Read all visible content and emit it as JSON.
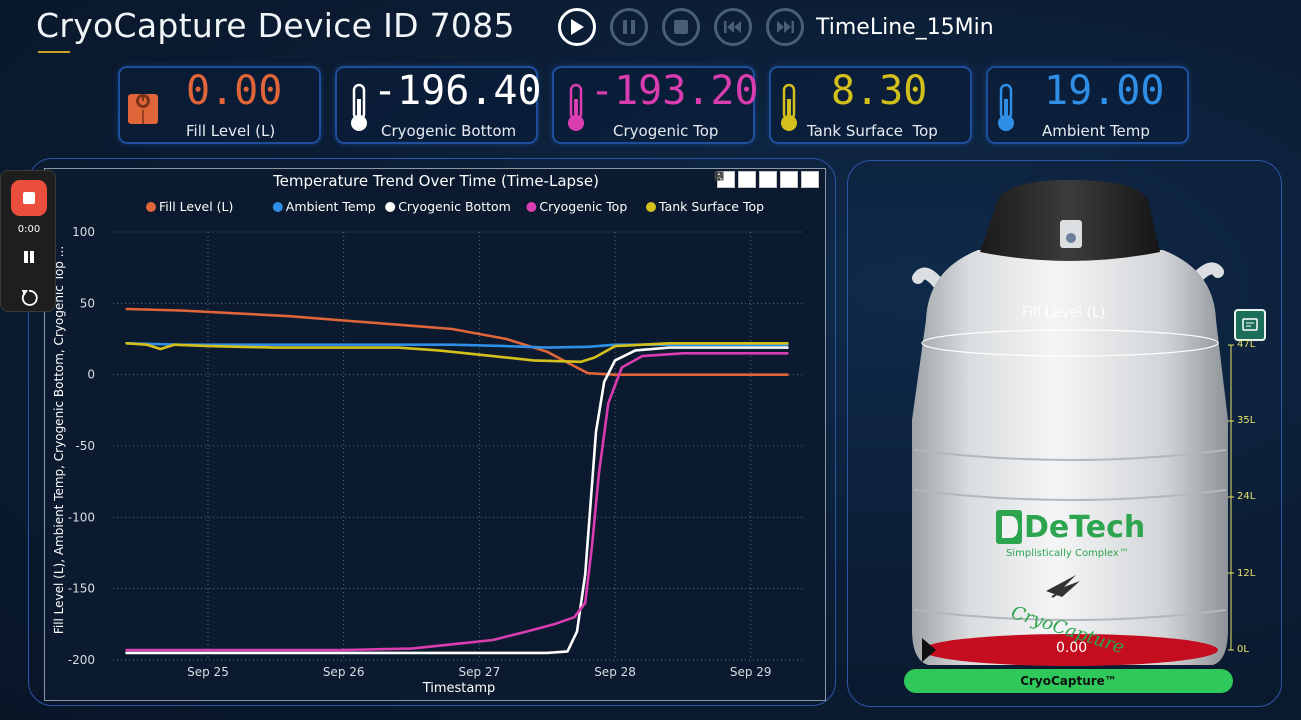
{
  "header": {
    "title": "CryoCapture Device ID 7085",
    "timeline": "TimeLine_15Min"
  },
  "kpis": [
    {
      "value": "0.00",
      "label": "Fill Level (L)",
      "color": "#e0663a",
      "icon": "fill-level-icon"
    },
    {
      "value": "-196.40",
      "label": "Cryogenic Bottom",
      "color": "#ffffff",
      "icon": "thermometer-icon"
    },
    {
      "value": "-193.20",
      "label": "Cryogenic Top",
      "color": "#d93db0",
      "icon": "thermometer-icon"
    },
    {
      "value": "8.30",
      "label": "Tank Surface  Top",
      "color": "#d4c01c",
      "icon": "thermometer-icon"
    },
    {
      "value": "19.00",
      "label": "Ambient Temp",
      "color": "#2f8fe6",
      "icon": "thermometer-icon"
    }
  ],
  "recorder": {
    "time": "0:00"
  },
  "chart_data": {
    "type": "line",
    "title": "Temperature Trend Over Time (Time-Lapse)",
    "xlabel": "Timestamp",
    "ylabel": "Fill Level (L), Ambient Temp, Cryogenic Bottom, Cryogenic Top ...",
    "ylim": [
      -200,
      100
    ],
    "yticks": [
      100,
      50,
      0,
      -50,
      -100,
      -150,
      -200
    ],
    "xlim": [
      24.3,
      29.4
    ],
    "xticks": [
      {
        "x": 25,
        "label": "Sep 25"
      },
      {
        "x": 26,
        "label": "Sep 26"
      },
      {
        "x": 27,
        "label": "Sep 27"
      },
      {
        "x": 28,
        "label": "Sep 28"
      },
      {
        "x": 29,
        "label": "Sep 29"
      }
    ],
    "legend_position": "top",
    "grid": true,
    "series": [
      {
        "name": "Fill Level (L)",
        "color": "#e0663a",
        "points": [
          [
            24.4,
            46
          ],
          [
            24.8,
            45
          ],
          [
            25.2,
            43
          ],
          [
            25.6,
            41
          ],
          [
            26.0,
            38
          ],
          [
            26.4,
            35
          ],
          [
            26.8,
            32
          ],
          [
            27.2,
            25
          ],
          [
            27.5,
            16
          ],
          [
            27.7,
            6
          ],
          [
            27.8,
            1
          ],
          [
            28.0,
            0
          ],
          [
            28.5,
            0
          ],
          [
            29.0,
            0
          ],
          [
            29.27,
            0
          ]
        ]
      },
      {
        "name": "Ambient Temp",
        "color": "#2f8fe6",
        "points": [
          [
            24.4,
            22
          ],
          [
            24.8,
            21
          ],
          [
            25.2,
            21
          ],
          [
            25.6,
            21
          ],
          [
            26.0,
            21
          ],
          [
            26.4,
            21
          ],
          [
            26.8,
            21
          ],
          [
            27.2,
            20
          ],
          [
            27.5,
            19
          ],
          [
            27.8,
            19.5
          ],
          [
            28.0,
            21
          ],
          [
            28.4,
            21
          ],
          [
            28.8,
            21
          ],
          [
            29.27,
            21
          ]
        ]
      },
      {
        "name": "Cryogenic Bottom",
        "color": "#ffffff",
        "points": [
          [
            24.4,
            -195
          ],
          [
            25.0,
            -195
          ],
          [
            26.0,
            -195
          ],
          [
            27.0,
            -195
          ],
          [
            27.5,
            -195
          ],
          [
            27.65,
            -194
          ],
          [
            27.72,
            -180
          ],
          [
            27.78,
            -140
          ],
          [
            27.82,
            -90
          ],
          [
            27.86,
            -40
          ],
          [
            27.92,
            -5
          ],
          [
            28.0,
            10
          ],
          [
            28.15,
            17
          ],
          [
            28.4,
            19
          ],
          [
            29.27,
            19
          ]
        ]
      },
      {
        "name": "Cryogenic Top",
        "color": "#d93db0",
        "points": [
          [
            24.4,
            -193
          ],
          [
            25.0,
            -193
          ],
          [
            25.5,
            -193
          ],
          [
            26.0,
            -193
          ],
          [
            26.5,
            -192
          ],
          [
            26.8,
            -189
          ],
          [
            27.1,
            -186
          ],
          [
            27.35,
            -180
          ],
          [
            27.55,
            -175
          ],
          [
            27.7,
            -170
          ],
          [
            27.78,
            -160
          ],
          [
            27.83,
            -120
          ],
          [
            27.88,
            -70
          ],
          [
            27.95,
            -20
          ],
          [
            28.05,
            5
          ],
          [
            28.2,
            13
          ],
          [
            28.5,
            15
          ],
          [
            29.27,
            15
          ]
        ]
      },
      {
        "name": "Tank Surface  Top",
        "color": "#d4c01c",
        "points": [
          [
            24.4,
            22
          ],
          [
            24.55,
            21
          ],
          [
            24.65,
            18
          ],
          [
            24.75,
            21
          ],
          [
            25.0,
            20
          ],
          [
            25.5,
            19
          ],
          [
            26.0,
            19
          ],
          [
            26.4,
            19
          ],
          [
            26.7,
            17
          ],
          [
            27.0,
            14
          ],
          [
            27.4,
            10
          ],
          [
            27.75,
            9
          ],
          [
            27.85,
            12
          ],
          [
            28.0,
            20
          ],
          [
            28.4,
            22
          ],
          [
            28.8,
            22
          ],
          [
            29.27,
            22
          ]
        ]
      }
    ]
  },
  "tank": {
    "fill_label": "Fill Level (L)",
    "fill_value": "0.00",
    "scale": [
      "47L",
      "35L",
      "24L",
      "12L",
      "0L"
    ],
    "brand": "DeTech",
    "tagline": "Simplistically Complex™",
    "script_logo": "CryoCapture",
    "bottom_label": "CryoCapture™"
  }
}
